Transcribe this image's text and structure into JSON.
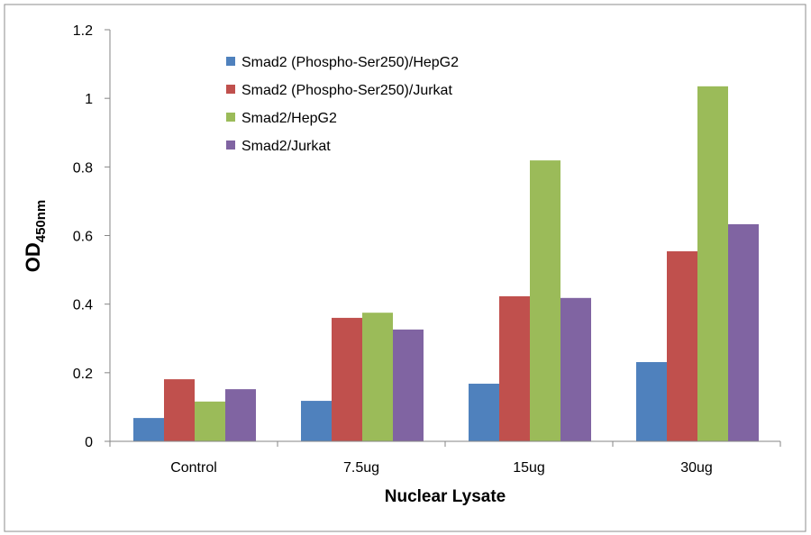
{
  "chart_data": {
    "type": "bar",
    "title": "",
    "xlabel": "Nuclear Lysate",
    "ylabel": "OD",
    "ylabel_subscript": "450nm",
    "ylim": [
      0,
      1.2
    ],
    "yticks": [
      "0",
      "0.2",
      "0.4",
      "0.6",
      "0.8",
      "1",
      "1.2"
    ],
    "grid": false,
    "legend_position": "top-left",
    "categories": [
      "Control",
      "7.5ug",
      "15ug",
      "30ug"
    ],
    "series": [
      {
        "name": "Smad2 (Phospho-Ser250)/HepG2",
        "color": "#4f81bd",
        "values": [
          0.068,
          0.118,
          0.168,
          0.231
        ]
      },
      {
        "name": "Smad2 (Phospho-Ser250)/Jurkat",
        "color": "#c0504d",
        "values": [
          0.181,
          0.36,
          0.423,
          0.554
        ]
      },
      {
        "name": "Smad2/HepG2",
        "color": "#9bbb59",
        "values": [
          0.116,
          0.375,
          0.819,
          1.035
        ]
      },
      {
        "name": "Smad2/Jurkat",
        "color": "#8064a2",
        "values": [
          0.152,
          0.326,
          0.418,
          0.633
        ]
      }
    ]
  }
}
